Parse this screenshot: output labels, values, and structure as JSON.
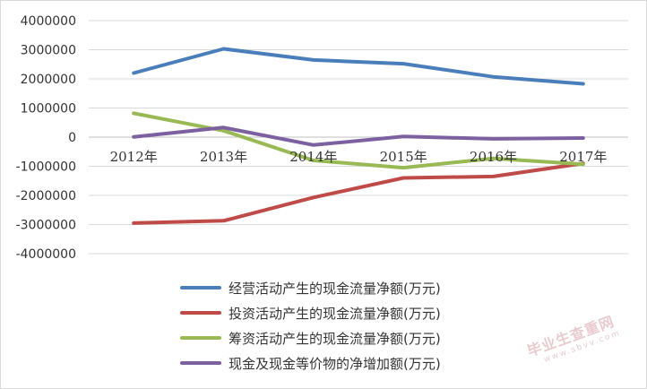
{
  "chart_data": {
    "type": "line",
    "title": "",
    "xlabel": "",
    "ylabel": "",
    "categories": [
      "2012年",
      "2013年",
      "2014年",
      "2015年",
      "2016年",
      "2017年"
    ],
    "ylim": [
      -4000000,
      4000000
    ],
    "yticks": [
      4000000,
      3000000,
      2000000,
      1000000,
      0,
      -1000000,
      -2000000,
      -3000000,
      -4000000
    ],
    "ytick_labels": [
      "4000000",
      "3000000",
      "2000000",
      "1000000",
      "0",
      "-1000000",
      "-2000000",
      "-3000000",
      "-4000000"
    ],
    "grid": "horizontal",
    "legend_position": "bottom",
    "series": [
      {
        "name": "经营活动产生的现金流量净额(万元)",
        "color": "#4a7ebb",
        "values": [
          2200000,
          3030000,
          2650000,
          2520000,
          2070000,
          1830000
        ]
      },
      {
        "name": "投资活动产生的现金流量净额(万元)",
        "color": "#be4b48",
        "values": [
          -2950000,
          -2870000,
          -2070000,
          -1400000,
          -1350000,
          -900000
        ]
      },
      {
        "name": "筹资活动产生的现金流量净额(万元)",
        "color": "#98b954",
        "values": [
          820000,
          220000,
          -800000,
          -1050000,
          -730000,
          -930000
        ]
      },
      {
        "name": "现金及现金等价物的净增加额(万元)",
        "color": "#7d60a0",
        "values": [
          10000,
          330000,
          -270000,
          20000,
          -60000,
          -30000
        ]
      }
    ]
  },
  "watermark": {
    "main": "毕业生查重网",
    "url": "www.sbvv.com"
  }
}
